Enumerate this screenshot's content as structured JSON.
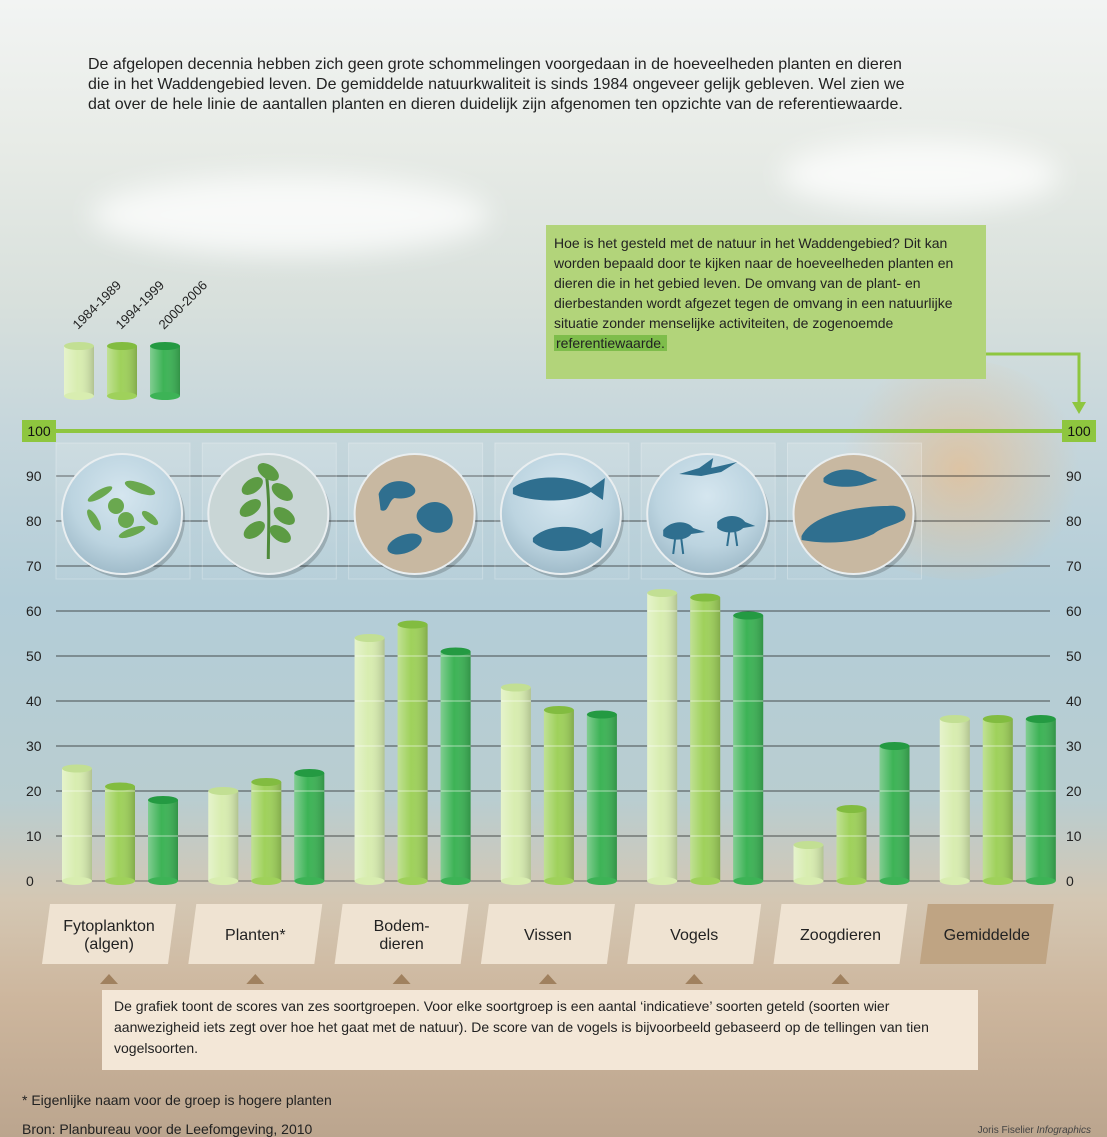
{
  "intro": "De afgelopen decennia hebben zich geen grote schommelingen voorgedaan in de hoeveelheden planten en dieren die in het Waddengebied leven. De gemiddelde natuurkwaliteit is sinds 1984 ongeveer gelijk gebleven. Wel zien we dat over de hele linie de aantallen planten en dieren duidelijk zijn afgenomen ten opzichte van de referentiewaarde.",
  "callout": {
    "text": "Hoe is het gesteld met de natuur in het Waddengebied? Dit kan worden bepaald door te kijken naar de hoeveelheden planten en dieren die in het gebied leven. De omvang van de plant- en dierbestanden wordt afgezet tegen de omvang in een natuurlijke situatie zonder menselijke activiteiten, de zogenoemde ",
    "highlight": "referentiewaarde."
  },
  "note": "De grafiek toont de scores van zes soortgroepen. Voor elke soortgroep is een aantal ‘indicatieve’ soorten geteld (soorten wier aanwezigheid iets zegt over hoe het gaat met de natuur). De score van de vogels is bijvoorbeeld gebaseerd op de tellingen van tien vogelsoorten.",
  "footnote": "* Eigenlijke naam voor de groep is hogere planten",
  "source": "Bron: Planbureau voor de Leefomgeving, 2010",
  "credit": "Joris Fiselier",
  "credit_italic": "Infographics",
  "reference_label": "100",
  "colors": {
    "series": [
      "#d8edb0",
      "#9fd15b",
      "#3db356"
    ],
    "series_dark": [
      "#c2df93",
      "#82bc40",
      "#249a42"
    ],
    "reference": "#8ec63f",
    "label_box": "#efe3d2",
    "label_box_highlight": "#bfa483",
    "icon_fill": "#2f6f8f"
  },
  "icons": [
    "phytoplankton-icon",
    "plants-icon",
    "benthic-animals-icon",
    "fish-icon",
    "birds-icon",
    "mammals-icon"
  ],
  "chart_data": {
    "type": "bar",
    "categories": [
      "Fytoplankton (algen)",
      "Planten*",
      "Bodem- dieren",
      "Vissen",
      "Vogels",
      "Zoogdieren",
      "Gemiddelde"
    ],
    "category_lines": [
      [
        "Fytoplankton",
        "(algen)"
      ],
      [
        "Planten*"
      ],
      [
        "Bodem-",
        "dieren"
      ],
      [
        "Vissen"
      ],
      [
        "Vogels"
      ],
      [
        "Zoogdieren"
      ],
      [
        "Gemiddelde"
      ]
    ],
    "series": [
      {
        "name": "1984-1989",
        "values": [
          25,
          20,
          54,
          43,
          64,
          8,
          36
        ]
      },
      {
        "name": "1994-1999",
        "values": [
          21,
          22,
          57,
          38,
          63,
          16,
          36
        ]
      },
      {
        "name": "2000-2006",
        "values": [
          18,
          24,
          51,
          37,
          59,
          30,
          36
        ]
      }
    ],
    "ylim": [
      0,
      100
    ],
    "yticks": [
      0,
      10,
      20,
      30,
      40,
      50,
      60,
      70,
      80,
      90
    ],
    "reference_value": 100,
    "grid": true,
    "legend_position": "top-left"
  }
}
